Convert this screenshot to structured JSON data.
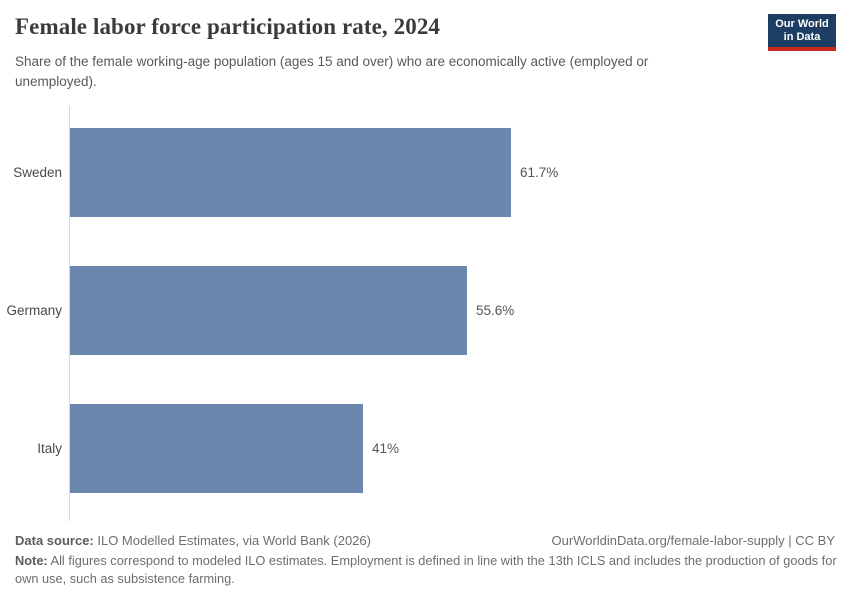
{
  "header": {
    "title": "Female labor force participation rate, 2024",
    "subtitle": "Share of the female working-age population (ages 15 and over) who are economically active (employed or unemployed).",
    "logo": {
      "line1": "Our World",
      "line2": "in Data",
      "bg_color": "#1d3d63",
      "accent_color": "#cc2a1d"
    }
  },
  "chart_data": {
    "type": "bar",
    "orientation": "horizontal",
    "title": "Female labor force participation rate, 2024",
    "subtitle": "Share of the female working-age population (ages 15 and over) who are economically active (employed or unemployed).",
    "categories": [
      "Sweden",
      "Germany",
      "Italy"
    ],
    "values": [
      61.7,
      55.6,
      41
    ],
    "value_labels": [
      "61.7%",
      "55.6%",
      "41%"
    ],
    "unit": "%",
    "xlabel": "",
    "ylabel": "",
    "xlim": [
      0,
      61.7
    ],
    "grid": false,
    "legend": "none",
    "bar_color": "#6c87ae",
    "axis_line_color": "#d6d6d6"
  },
  "footer": {
    "data_source_label": "Data source:",
    "data_source_text": " ILO Modelled Estimates, via World Bank (2026)",
    "link_text": "OurWorldinData.org/female-labor-supply | CC BY",
    "note_label": "Note:",
    "note_text": " All figures correspond to modeled ILO estimates. Employment is defined in line with the 13th ICLS and includes the production of goods for own use, such as subsistence farming."
  }
}
